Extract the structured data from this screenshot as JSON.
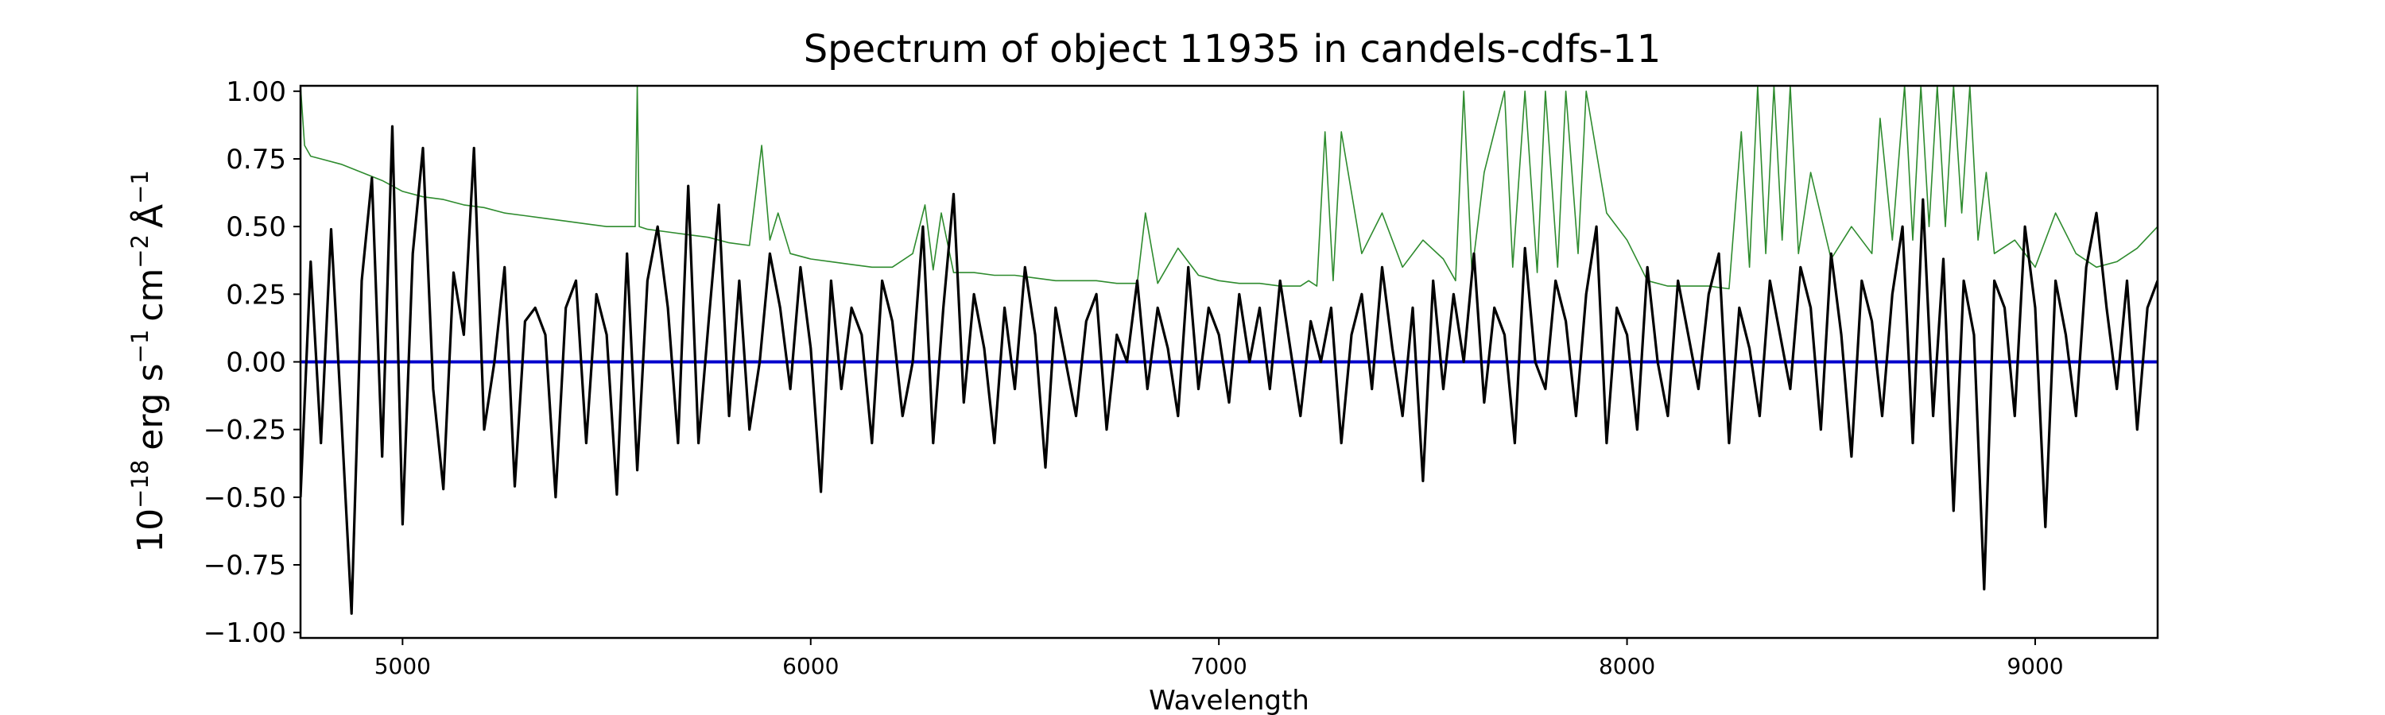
{
  "chart_data": {
    "type": "line",
    "title": "Spectrum of object 11935 in candels-cdfs-11",
    "xlabel": "Wavelength",
    "ylabel_parts": {
      "base": "10",
      "exp": "−18",
      "erg": "erg s",
      "s_exp": "−1",
      "cm": "cm",
      "cm_exp": "−2",
      "ang": "Å",
      "ang_exp": "−1"
    },
    "xlim": [
      4750,
      9300
    ],
    "ylim": [
      -1.02,
      1.02
    ],
    "x_ticks": [
      5000,
      6000,
      7000,
      8000,
      9000
    ],
    "x_tick_labels": [
      "5000",
      "6000",
      "7000",
      "8000",
      "9000"
    ],
    "y_ticks": [
      1.0,
      0.75,
      0.5,
      0.25,
      0.0,
      -0.25,
      -0.5,
      -0.75,
      -1.0
    ],
    "y_tick_labels": [
      "1.00",
      "0.75",
      "0.50",
      "0.25",
      "0.00",
      "−0.25",
      "−0.50",
      "−0.75",
      "−1.00"
    ],
    "grid": false,
    "colors": {
      "flux": "#000000",
      "error": "#2e8b2e",
      "zero": "#0000cc"
    },
    "series": [
      {
        "role": "flux",
        "color": "#000000",
        "x": [
          4750,
          4775,
          4800,
          4825,
          4850,
          4875,
          4900,
          4925,
          4950,
          4975,
          5000,
          5025,
          5050,
          5075,
          5100,
          5125,
          5150,
          5175,
          5200,
          5225,
          5250,
          5275,
          5300,
          5325,
          5350,
          5375,
          5400,
          5425,
          5450,
          5475,
          5500,
          5525,
          5550,
          5575,
          5600,
          5625,
          5650,
          5675,
          5700,
          5725,
          5750,
          5775,
          5800,
          5825,
          5850,
          5875,
          5900,
          5925,
          5950,
          5975,
          6000,
          6025,
          6050,
          6075,
          6100,
          6125,
          6150,
          6175,
          6200,
          6225,
          6250,
          6275,
          6300,
          6325,
          6350,
          6375,
          6400,
          6425,
          6450,
          6475,
          6500,
          6525,
          6550,
          6575,
          6600,
          6625,
          6650,
          6675,
          6700,
          6725,
          6750,
          6775,
          6800,
          6825,
          6850,
          6875,
          6900,
          6925,
          6950,
          6975,
          7000,
          7025,
          7050,
          7075,
          7100,
          7125,
          7150,
          7175,
          7200,
          7225,
          7250,
          7275,
          7300,
          7325,
          7350,
          7375,
          7400,
          7425,
          7450,
          7475,
          7500,
          7525,
          7550,
          7575,
          7600,
          7625,
          7650,
          7675,
          7700,
          7725,
          7750,
          7775,
          7800,
          7825,
          7850,
          7875,
          7900,
          7925,
          7950,
          7975,
          8000,
          8025,
          8050,
          8075,
          8100,
          8125,
          8150,
          8175,
          8200,
          8225,
          8250,
          8275,
          8300,
          8325,
          8350,
          8375,
          8400,
          8425,
          8450,
          8475,
          8500,
          8525,
          8550,
          8575,
          8600,
          8625,
          8650,
          8675,
          8700,
          8725,
          8750,
          8775,
          8800,
          8825,
          8850,
          8875,
          8900,
          8925,
          8950,
          8975,
          9000,
          9025,
          9050,
          9075,
          9100,
          9125,
          9150,
          9175,
          9200,
          9225,
          9250,
          9275,
          9300
        ],
        "y": [
          -0.5,
          0.37,
          -0.3,
          0.49,
          -0.2,
          -0.93,
          0.3,
          0.68,
          -0.35,
          0.87,
          -0.6,
          0.4,
          0.79,
          -0.1,
          -0.47,
          0.33,
          0.1,
          0.79,
          -0.25,
          0.0,
          0.35,
          -0.46,
          0.15,
          0.2,
          0.1,
          -0.5,
          0.2,
          0.3,
          -0.3,
          0.25,
          0.1,
          -0.49,
          0.4,
          -0.4,
          0.3,
          0.5,
          0.2,
          -0.3,
          0.65,
          -0.3,
          0.15,
          0.58,
          -0.2,
          0.3,
          -0.25,
          0.0,
          0.4,
          0.2,
          -0.1,
          0.35,
          0.05,
          -0.48,
          0.3,
          -0.1,
          0.2,
          0.1,
          -0.3,
          0.3,
          0.15,
          -0.2,
          0.0,
          0.5,
          -0.3,
          0.2,
          0.62,
          -0.15,
          0.25,
          0.05,
          -0.3,
          0.2,
          -0.1,
          0.35,
          0.1,
          -0.39,
          0.2,
          0.0,
          -0.2,
          0.15,
          0.25,
          -0.25,
          0.1,
          0.0,
          0.3,
          -0.1,
          0.2,
          0.05,
          -0.2,
          0.35,
          -0.1,
          0.2,
          0.1,
          -0.15,
          0.25,
          0.0,
          0.2,
          -0.1,
          0.3,
          0.05,
          -0.2,
          0.15,
          0.0,
          0.2,
          -0.3,
          0.1,
          0.25,
          -0.1,
          0.35,
          0.05,
          -0.2,
          0.2,
          -0.44,
          0.3,
          -0.1,
          0.25,
          0.0,
          0.4,
          -0.15,
          0.2,
          0.1,
          -0.3,
          0.42,
          0.0,
          -0.1,
          0.3,
          0.15,
          -0.2,
          0.25,
          0.5,
          -0.3,
          0.2,
          0.1,
          -0.25,
          0.35,
          0.0,
          -0.2,
          0.3,
          0.1,
          -0.1,
          0.25,
          0.4,
          -0.3,
          0.2,
          0.05,
          -0.2,
          0.3,
          0.1,
          -0.1,
          0.35,
          0.2,
          -0.25,
          0.4,
          0.1,
          -0.35,
          0.3,
          0.15,
          -0.2,
          0.25,
          0.5,
          -0.3,
          0.6,
          -0.2,
          0.38,
          -0.55,
          0.3,
          0.1,
          -0.84,
          0.3,
          0.2,
          -0.2,
          0.5,
          0.2,
          -0.61,
          0.3,
          0.1,
          -0.2,
          0.35,
          0.55,
          0.2,
          -0.1,
          0.3,
          -0.25,
          0.2,
          0.3
        ]
      },
      {
        "role": "error",
        "color": "#2e8b2e",
        "x": [
          4750,
          4760,
          4775,
          4800,
          4850,
          4900,
          4950,
          5000,
          5050,
          5100,
          5150,
          5200,
          5250,
          5300,
          5350,
          5400,
          5450,
          5500,
          5550,
          5570,
          5575,
          5580,
          5600,
          5650,
          5700,
          5750,
          5800,
          5850,
          5880,
          5900,
          5920,
          5950,
          6000,
          6050,
          6100,
          6150,
          6200,
          6250,
          6280,
          6300,
          6320,
          6350,
          6400,
          6450,
          6500,
          6550,
          6600,
          6650,
          6700,
          6750,
          6800,
          6820,
          6850,
          6900,
          6950,
          7000,
          7050,
          7100,
          7150,
          7200,
          7220,
          7240,
          7260,
          7280,
          7300,
          7350,
          7400,
          7450,
          7500,
          7550,
          7580,
          7600,
          7620,
          7650,
          7700,
          7720,
          7750,
          7780,
          7800,
          7830,
          7850,
          7880,
          7900,
          7950,
          8000,
          8050,
          8100,
          8150,
          8200,
          8250,
          8280,
          8300,
          8320,
          8340,
          8360,
          8380,
          8400,
          8420,
          8450,
          8500,
          8550,
          8600,
          8620,
          8650,
          8680,
          8700,
          8720,
          8740,
          8760,
          8780,
          8800,
          8820,
          8840,
          8860,
          8880,
          8900,
          8950,
          9000,
          9050,
          9100,
          9150,
          9200,
          9250,
          9300
        ],
        "y": [
          1.02,
          0.8,
          0.76,
          0.75,
          0.73,
          0.7,
          0.67,
          0.63,
          0.61,
          0.6,
          0.58,
          0.57,
          0.55,
          0.54,
          0.53,
          0.52,
          0.51,
          0.5,
          0.5,
          0.5,
          1.02,
          0.5,
          0.49,
          0.48,
          0.47,
          0.46,
          0.44,
          0.43,
          0.8,
          0.45,
          0.55,
          0.4,
          0.38,
          0.37,
          0.36,
          0.35,
          0.35,
          0.4,
          0.58,
          0.34,
          0.55,
          0.33,
          0.33,
          0.32,
          0.32,
          0.31,
          0.3,
          0.3,
          0.3,
          0.29,
          0.29,
          0.55,
          0.29,
          0.42,
          0.32,
          0.3,
          0.29,
          0.29,
          0.28,
          0.28,
          0.3,
          0.28,
          0.85,
          0.3,
          0.85,
          0.4,
          0.55,
          0.35,
          0.45,
          0.38,
          0.3,
          1.0,
          0.33,
          0.7,
          1.0,
          0.35,
          1.0,
          0.33,
          1.0,
          0.35,
          1.0,
          0.4,
          1.0,
          0.55,
          0.45,
          0.3,
          0.28,
          0.28,
          0.28,
          0.27,
          0.85,
          0.35,
          1.02,
          0.4,
          1.02,
          0.45,
          1.02,
          0.4,
          0.7,
          0.38,
          0.5,
          0.4,
          0.9,
          0.45,
          1.02,
          0.45,
          1.02,
          0.5,
          1.02,
          0.5,
          1.02,
          0.55,
          1.02,
          0.45,
          0.7,
          0.4,
          0.45,
          0.35,
          0.55,
          0.4,
          0.35,
          0.37,
          0.42,
          0.5
        ]
      }
    ]
  }
}
